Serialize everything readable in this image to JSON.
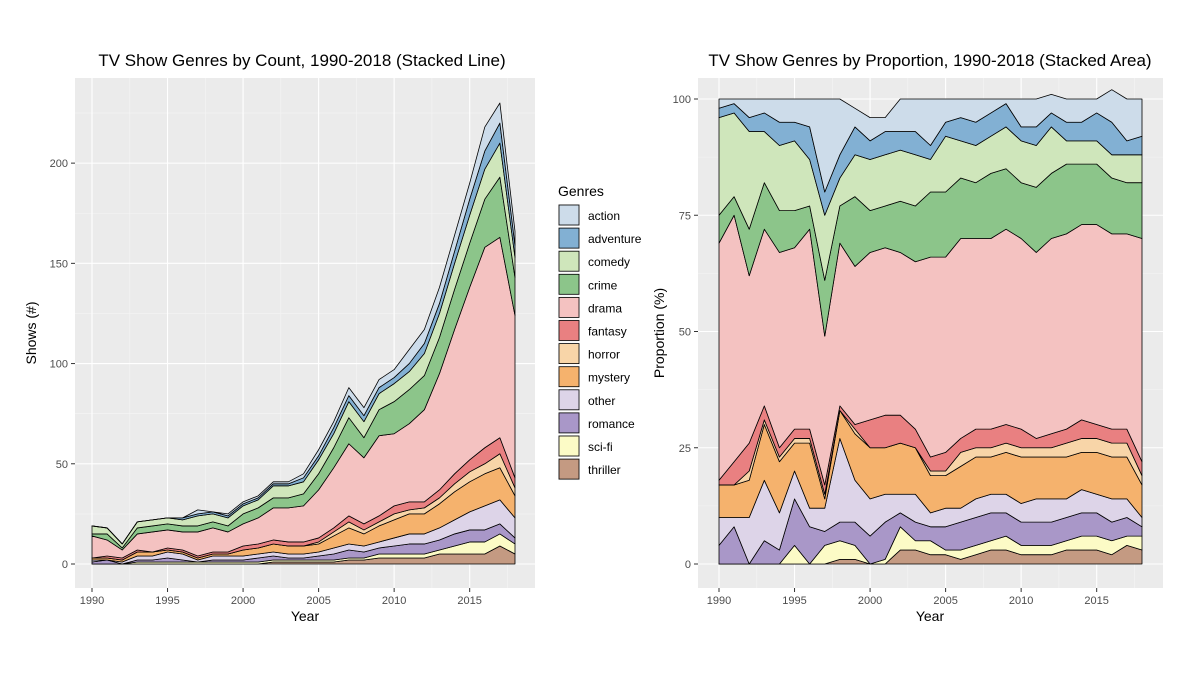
{
  "legend": {
    "title": "Genres",
    "keys": [
      "action",
      "adventure",
      "comedy",
      "crime",
      "drama",
      "fantasy",
      "horror",
      "mystery",
      "other",
      "romance",
      "sci-fi",
      "thriller"
    ],
    "colors": {
      "thriller": "#c49a82",
      "sci-fi": "#fcfbc6",
      "romance": "#a997c8",
      "other": "#ddd4e8",
      "mystery": "#f5b26d",
      "horror": "#f8d5a8",
      "fantasy": "#e98081",
      "drama": "#f4c2c1",
      "crime": "#8cc58a",
      "comedy": "#cfe6bb",
      "adventure": "#82b0d3",
      "action": "#cddcea"
    }
  },
  "chart_data": [
    {
      "type": "area",
      "stacked": true,
      "title": "TV Show Genres by Count, 1990-2018 (Stacked Line)",
      "xlabel": "Year",
      "ylabel": "Shows (#)",
      "xlim": [
        1990,
        2018
      ],
      "ylim": [
        0,
        230
      ],
      "xticks": [
        1990,
        1995,
        2000,
        2005,
        2010,
        2015
      ],
      "yticks": [
        0,
        50,
        100,
        150,
        200
      ],
      "grid": true,
      "legend_position": "right",
      "x": [
        1990,
        1991,
        1992,
        1993,
        1994,
        1995,
        1996,
        1997,
        1998,
        1999,
        2000,
        2001,
        2002,
        2003,
        2004,
        2005,
        2006,
        2007,
        2008,
        2009,
        2010,
        2011,
        2012,
        2013,
        2014,
        2015,
        2016,
        2017,
        2018
      ],
      "series": [
        {
          "name": "thriller",
          "values": [
            0,
            0,
            0,
            0,
            0,
            0,
            0,
            0,
            0,
            0,
            0,
            0,
            1,
            1,
            1,
            1,
            1,
            2,
            2,
            3,
            3,
            3,
            3,
            5,
            5,
            5,
            5,
            9,
            5
          ]
        },
        {
          "name": "sci-fi",
          "values": [
            0,
            0,
            0,
            1,
            1,
            1,
            1,
            1,
            1,
            1,
            1,
            1,
            1,
            1,
            1,
            1,
            1,
            1,
            1,
            2,
            2,
            2,
            2,
            2,
            4,
            6,
            6,
            6,
            5
          ]
        },
        {
          "name": "romance",
          "values": [
            1,
            2,
            0,
            1,
            1,
            2,
            1,
            0,
            1,
            1,
            1,
            2,
            2,
            1,
            1,
            2,
            3,
            4,
            3,
            3,
            4,
            5,
            5,
            5,
            6,
            6,
            6,
            5,
            3
          ]
        },
        {
          "name": "other",
          "values": [
            1,
            0,
            1,
            2,
            2,
            3,
            3,
            1,
            2,
            2,
            2,
            2,
            2,
            2,
            2,
            2,
            3,
            3,
            3,
            3,
            4,
            5,
            5,
            6,
            7,
            9,
            12,
            12,
            10
          ]
        },
        {
          "name": "mystery",
          "values": [
            1,
            1,
            1,
            2,
            2,
            1,
            1,
            1,
            1,
            1,
            3,
            3,
            4,
            4,
            4,
            4,
            6,
            8,
            6,
            8,
            9,
            10,
            10,
            12,
            14,
            15,
            16,
            16,
            11
          ]
        },
        {
          "name": "horror",
          "values": [
            0,
            0,
            0,
            0,
            0,
            0,
            0,
            0,
            0,
            0,
            0,
            0,
            0,
            0,
            0,
            1,
            2,
            3,
            2,
            2,
            3,
            2,
            3,
            3,
            4,
            5,
            5,
            7,
            4
          ]
        },
        {
          "name": "fantasy",
          "values": [
            0,
            1,
            1,
            1,
            0,
            1,
            1,
            1,
            1,
            1,
            2,
            2,
            2,
            2,
            2,
            2,
            2,
            3,
            3,
            3,
            4,
            4,
            3,
            4,
            5,
            6,
            8,
            8,
            5
          ]
        },
        {
          "name": "drama",
          "values": [
            11,
            8,
            4,
            8,
            10,
            9,
            9,
            12,
            12,
            10,
            11,
            13,
            16,
            17,
            18,
            24,
            30,
            36,
            33,
            40,
            36,
            39,
            46,
            58,
            72,
            86,
            100,
            100,
            81
          ]
        },
        {
          "name": "crime",
          "values": [
            1,
            3,
            1,
            3,
            3,
            3,
            3,
            3,
            3,
            3,
            5,
            5,
            5,
            5,
            6,
            8,
            10,
            13,
            10,
            13,
            16,
            17,
            17,
            18,
            20,
            22,
            24,
            30,
            19
          ]
        },
        {
          "name": "comedy",
          "values": [
            4,
            3,
            2,
            3,
            3,
            3,
            3,
            5,
            4,
            4,
            4,
            4,
            6,
            6,
            6,
            7,
            7,
            8,
            8,
            8,
            9,
            9,
            11,
            12,
            13,
            14,
            15,
            17,
            10
          ]
        },
        {
          "name": "adventure",
          "values": [
            0,
            0,
            0,
            0,
            0,
            0,
            1,
            1,
            1,
            1,
            1,
            1,
            1,
            1,
            2,
            2,
            3,
            3,
            3,
            3,
            3,
            4,
            5,
            5,
            6,
            8,
            9,
            10,
            6
          ]
        },
        {
          "name": "action",
          "values": [
            0,
            0,
            0,
            0,
            0,
            0,
            0,
            2,
            0,
            1,
            1,
            1,
            1,
            1,
            2,
            3,
            3,
            4,
            4,
            4,
            4,
            7,
            7,
            8,
            8,
            8,
            12,
            10,
            7
          ]
        }
      ]
    },
    {
      "type": "area",
      "stacked": true,
      "title": "TV Show Genres by Proportion, 1990-2018 (Stacked Area)",
      "xlabel": "Year",
      "ylabel": "Proportion (%)",
      "xlim": [
        1990,
        2018
      ],
      "ylim": [
        0,
        100
      ],
      "xticks": [
        1990,
        1995,
        2000,
        2005,
        2010,
        2015
      ],
      "yticks": [
        0,
        25,
        50,
        75,
        100
      ],
      "grid": true,
      "x": [
        1990,
        1991,
        1992,
        1993,
        1994,
        1995,
        1996,
        1997,
        1998,
        1999,
        2000,
        2001,
        2002,
        2003,
        2004,
        2005,
        2006,
        2007,
        2008,
        2009,
        2010,
        2011,
        2012,
        2013,
        2014,
        2015,
        2016,
        2017,
        2018
      ],
      "series": [
        {
          "name": "thriller",
          "values": [
            0,
            0,
            0,
            0,
            0,
            0,
            0,
            0,
            1,
            1,
            0,
            0,
            3,
            3,
            2,
            2,
            1,
            2,
            3,
            3,
            2,
            2,
            2,
            3,
            3,
            3,
            2,
            4,
            3
          ]
        },
        {
          "name": "sci-fi",
          "values": [
            0,
            0,
            0,
            0,
            0,
            4,
            0,
            4,
            4,
            3,
            0,
            1,
            5,
            2,
            3,
            1,
            2,
            2,
            2,
            3,
            2,
            2,
            2,
            2,
            3,
            3,
            3,
            2,
            3
          ]
        },
        {
          "name": "romance",
          "values": [
            4,
            8,
            0,
            5,
            3,
            10,
            8,
            3,
            4,
            5,
            6,
            8,
            3,
            4,
            3,
            5,
            6,
            6,
            6,
            5,
            5,
            5,
            5,
            5,
            5,
            5,
            4,
            4,
            2
          ]
        },
        {
          "name": "other",
          "values": [
            6,
            2,
            10,
            13,
            8,
            6,
            4,
            5,
            18,
            9,
            8,
            6,
            4,
            6,
            3,
            4,
            3,
            4,
            4,
            4,
            4,
            5,
            5,
            4,
            5,
            4,
            5,
            4,
            2
          ]
        },
        {
          "name": "mystery",
          "values": [
            7,
            7,
            8,
            12,
            11,
            6,
            14,
            2,
            6,
            10,
            11,
            10,
            11,
            10,
            8,
            7,
            9,
            9,
            8,
            9,
            10,
            9,
            9,
            9,
            8,
            9,
            9,
            9,
            7
          ]
        },
        {
          "name": "horror",
          "values": [
            0,
            0,
            2,
            1,
            1,
            1,
            1,
            1,
            0,
            1,
            0,
            0,
            0,
            0,
            1,
            1,
            3,
            2,
            2,
            2,
            2,
            2,
            2,
            3,
            3,
            3,
            3,
            3,
            2
          ]
        },
        {
          "name": "fantasy",
          "values": [
            1,
            5,
            6,
            3,
            2,
            2,
            2,
            2,
            1,
            1,
            6,
            7,
            6,
            4,
            3,
            4,
            3,
            4,
            4,
            4,
            4,
            2,
            3,
            3,
            4,
            3,
            3,
            3,
            3
          ]
        },
        {
          "name": "drama",
          "values": [
            51,
            53,
            36,
            38,
            42,
            39,
            43,
            32,
            35,
            34,
            36,
            36,
            35,
            36,
            43,
            42,
            43,
            41,
            41,
            42,
            41,
            40,
            42,
            42,
            42,
            43,
            42,
            42,
            48
          ]
        },
        {
          "name": "crime",
          "values": [
            6,
            4,
            10,
            10,
            9,
            8,
            5,
            12,
            8,
            15,
            9,
            9,
            11,
            12,
            14,
            14,
            13,
            12,
            14,
            13,
            12,
            14,
            14,
            15,
            13,
            13,
            12,
            11,
            12
          ]
        },
        {
          "name": "comedy",
          "values": [
            21,
            18,
            21,
            11,
            14,
            15,
            10,
            14,
            6,
            9,
            11,
            11,
            11,
            11,
            7,
            12,
            8,
            8,
            8,
            9,
            9,
            9,
            10,
            5,
            5,
            5,
            5,
            6,
            6
          ]
        },
        {
          "name": "adventure",
          "values": [
            2,
            2,
            3,
            4,
            5,
            4,
            7,
            5,
            5,
            6,
            4,
            5,
            4,
            5,
            3,
            3,
            5,
            5,
            5,
            5,
            3,
            4,
            3,
            4,
            4,
            6,
            7,
            3,
            4
          ]
        },
        {
          "name": "action",
          "values": [
            2,
            1,
            4,
            3,
            5,
            5,
            6,
            20,
            12,
            4,
            5,
            3,
            7,
            7,
            10,
            5,
            4,
            5,
            3,
            1,
            6,
            6,
            4,
            5,
            5,
            3,
            7,
            9,
            8
          ]
        }
      ]
    }
  ]
}
